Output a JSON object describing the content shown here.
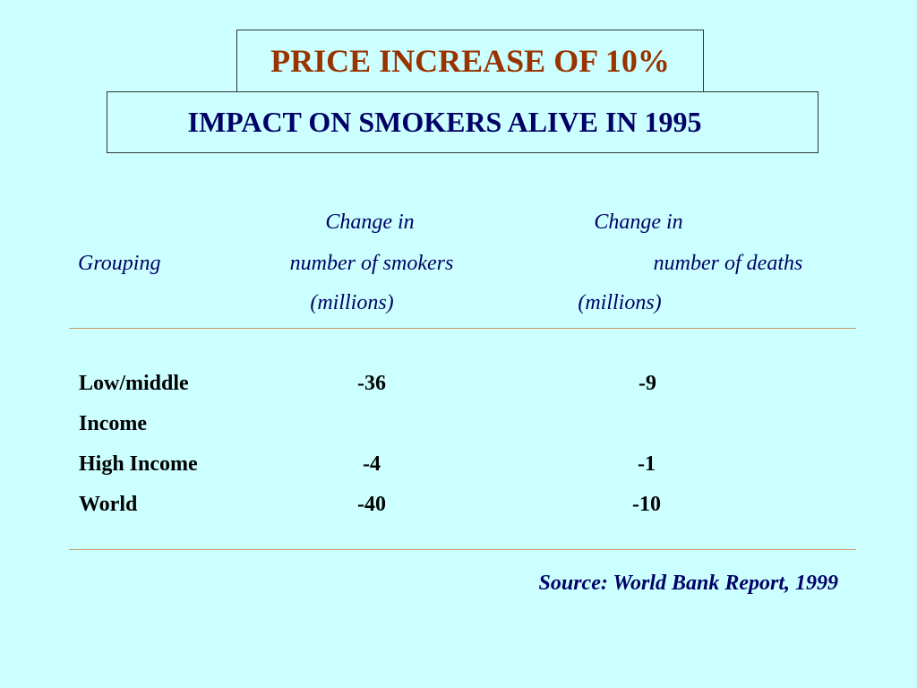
{
  "slide": {
    "title": "PRICE INCREASE OF 10%",
    "subtitle": "IMPACT ON SMOKERS ALIVE IN 1995",
    "colors": {
      "background": "#ccffff",
      "title": "#993300",
      "heading_text": "#000066",
      "body_text": "#000000",
      "rule": "#cc9966"
    }
  },
  "table": {
    "headers": {
      "grouping": "Grouping",
      "smokers_line1": "Change in",
      "smokers_line2": "number of smokers",
      "smokers_line3": "(millions)",
      "deaths_line1": "Change in",
      "deaths_line2": "number of deaths",
      "deaths_line3": "(millions)"
    },
    "rows": [
      {
        "label_line1": "Low/middle",
        "label_line2": "Income",
        "smokers": "-36",
        "deaths": "-9"
      },
      {
        "label_line1": "High Income",
        "smokers": "-4",
        "deaths": "-1"
      },
      {
        "label_line1": "World",
        "smokers": "-40",
        "deaths": "-10"
      }
    ]
  },
  "source": "Source: World Bank Report, 1999"
}
